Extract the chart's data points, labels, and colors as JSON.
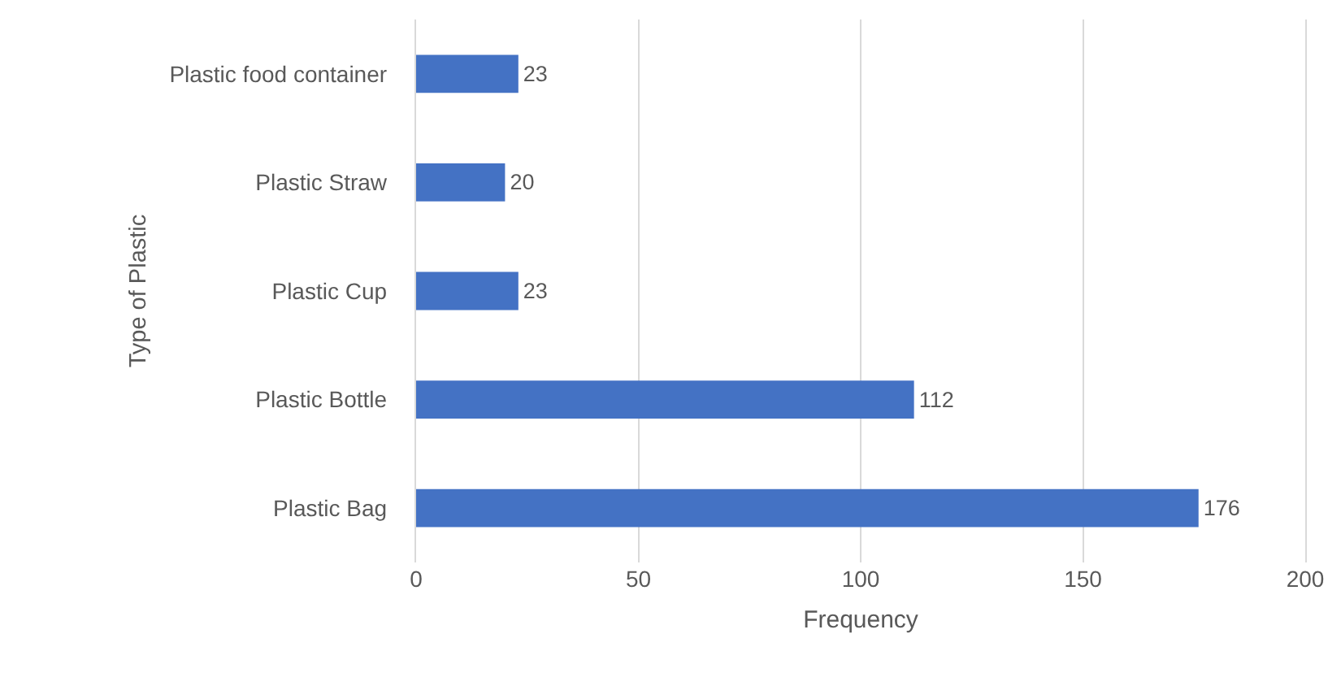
{
  "chart_data": {
    "type": "bar",
    "orientation": "horizontal",
    "xlabel": "Frequency",
    "ylabel": "Type of Plastic",
    "categories": [
      "Plastic food container",
      "Plastic Straw",
      "Plastic Cup",
      "Plastic Bottle",
      "Plastic Bag"
    ],
    "values": [
      23,
      20,
      23,
      112,
      176
    ],
    "color": "#4472c4",
    "xlim": [
      0,
      200
    ],
    "xticks": [
      0,
      50,
      100,
      150,
      200
    ],
    "grid": "x",
    "data_labels": true
  }
}
